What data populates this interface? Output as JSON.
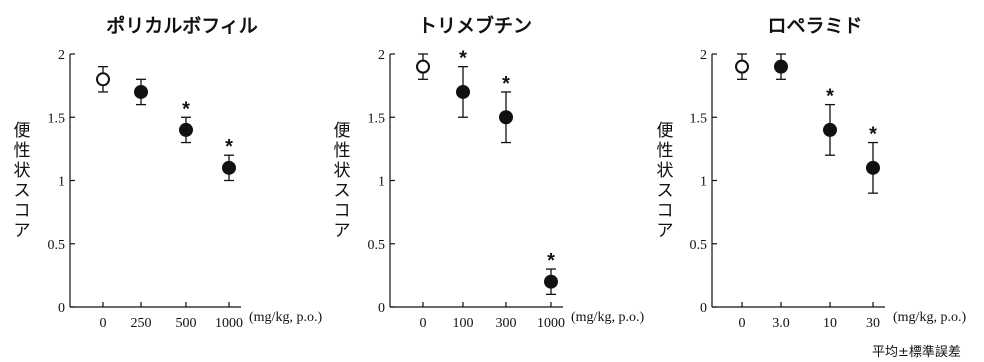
{
  "chart_data": [
    {
      "type": "scatter",
      "title": "ポリカルボフィル",
      "ylabel": "便性状スコア",
      "xunit": "(mg/kg, p.o.)",
      "categories": [
        "0",
        "250",
        "500",
        "1000"
      ],
      "ylim": [
        0,
        2
      ],
      "yticks": [
        "0",
        "0.5",
        "1",
        "1.5",
        "2"
      ],
      "points": [
        {
          "x": "0",
          "y": 1.8,
          "err": 0.1,
          "control": true,
          "significant": false
        },
        {
          "x": "250",
          "y": 1.7,
          "err": 0.1,
          "control": false,
          "significant": false
        },
        {
          "x": "500",
          "y": 1.4,
          "err": 0.1,
          "control": false,
          "significant": true
        },
        {
          "x": "1000",
          "y": 1.1,
          "err": 0.1,
          "control": false,
          "significant": true
        }
      ],
      "significance_mark": "*"
    },
    {
      "type": "scatter",
      "title": "トリメブチン",
      "ylabel": "便性状スコア",
      "xunit": "(mg/kg, p.o.)",
      "categories": [
        "0",
        "100",
        "300",
        "1000"
      ],
      "ylim": [
        0,
        2
      ],
      "yticks": [
        "0",
        "0.5",
        "1",
        "1.5",
        "2"
      ],
      "points": [
        {
          "x": "0",
          "y": 1.9,
          "err": 0.1,
          "control": true,
          "significant": false
        },
        {
          "x": "100",
          "y": 1.7,
          "err": 0.2,
          "control": false,
          "significant": true
        },
        {
          "x": "300",
          "y": 1.5,
          "err": 0.2,
          "control": false,
          "significant": true
        },
        {
          "x": "1000",
          "y": 0.2,
          "err": 0.1,
          "control": false,
          "significant": true
        }
      ],
      "significance_mark": "*"
    },
    {
      "type": "scatter",
      "title": "ロペラミド",
      "ylabel": "便性状スコア",
      "xunit": "(mg/kg, p.o.)",
      "categories": [
        "0",
        "3.0",
        "10",
        "30"
      ],
      "ylim": [
        0,
        2
      ],
      "yticks": [
        "0",
        "0.5",
        "1",
        "1.5",
        "2"
      ],
      "points": [
        {
          "x": "0",
          "y": 1.9,
          "err": 0.1,
          "control": true,
          "significant": false
        },
        {
          "x": "3.0",
          "y": 1.9,
          "err": 0.1,
          "control": false,
          "significant": false
        },
        {
          "x": "10",
          "y": 1.4,
          "err": 0.2,
          "control": false,
          "significant": true
        },
        {
          "x": "30",
          "y": 1.1,
          "err": 0.2,
          "control": false,
          "significant": true
        }
      ],
      "significance_mark": "*"
    }
  ],
  "footnote": "平均±標準誤差",
  "colors": {
    "ink": "#111111",
    "background": "#ffffff"
  }
}
